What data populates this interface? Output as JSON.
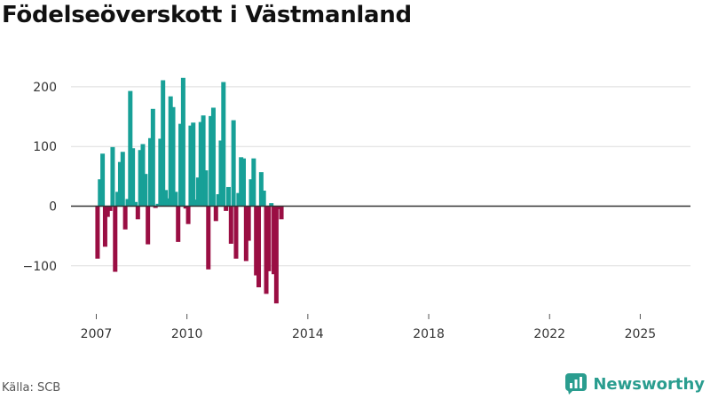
{
  "chart_data": {
    "type": "bar",
    "title": "Födelseöverskott i Västmanland",
    "xlabel": "",
    "ylabel": "",
    "ylim": [
      -170,
      225
    ],
    "yticks": [
      -100,
      0,
      100,
      200
    ],
    "ytick_labels": [
      "−100",
      "0",
      "100",
      "200"
    ],
    "xticks": [
      2007,
      2010,
      2014,
      2018,
      2022,
      2025
    ],
    "xtick_labels": [
      "2007",
      "2010",
      "2014",
      "2018",
      "2022",
      "2025"
    ],
    "frequency": "monthly",
    "start": "2007-01",
    "colors": {
      "positive": "#17a097",
      "negative": "#9a0e43",
      "grid": "#dddddd",
      "zero": "#333333"
    },
    "values": [
      -88,
      45,
      88,
      -68,
      -18,
      -8,
      99,
      -110,
      24,
      74,
      91,
      -39,
      12,
      193,
      97,
      7,
      -22,
      94,
      104,
      54,
      -64,
      114,
      163,
      -3,
      4,
      113,
      211,
      27,
      13,
      184,
      166,
      24,
      -60,
      138,
      215,
      -4,
      -30,
      135,
      140,
      11,
      48,
      141,
      152,
      60,
      -106,
      151,
      165,
      -25,
      20,
      110,
      208,
      -8,
      32,
      -63,
      144,
      -88,
      22,
      82,
      80,
      -92,
      -58,
      45,
      80,
      -116,
      -136,
      57,
      26,
      -147,
      -109,
      5,
      -114,
      -163,
      -5,
      -22
    ]
  },
  "footer": {
    "source": "Källa: SCB",
    "brand": "Newsworthy"
  }
}
